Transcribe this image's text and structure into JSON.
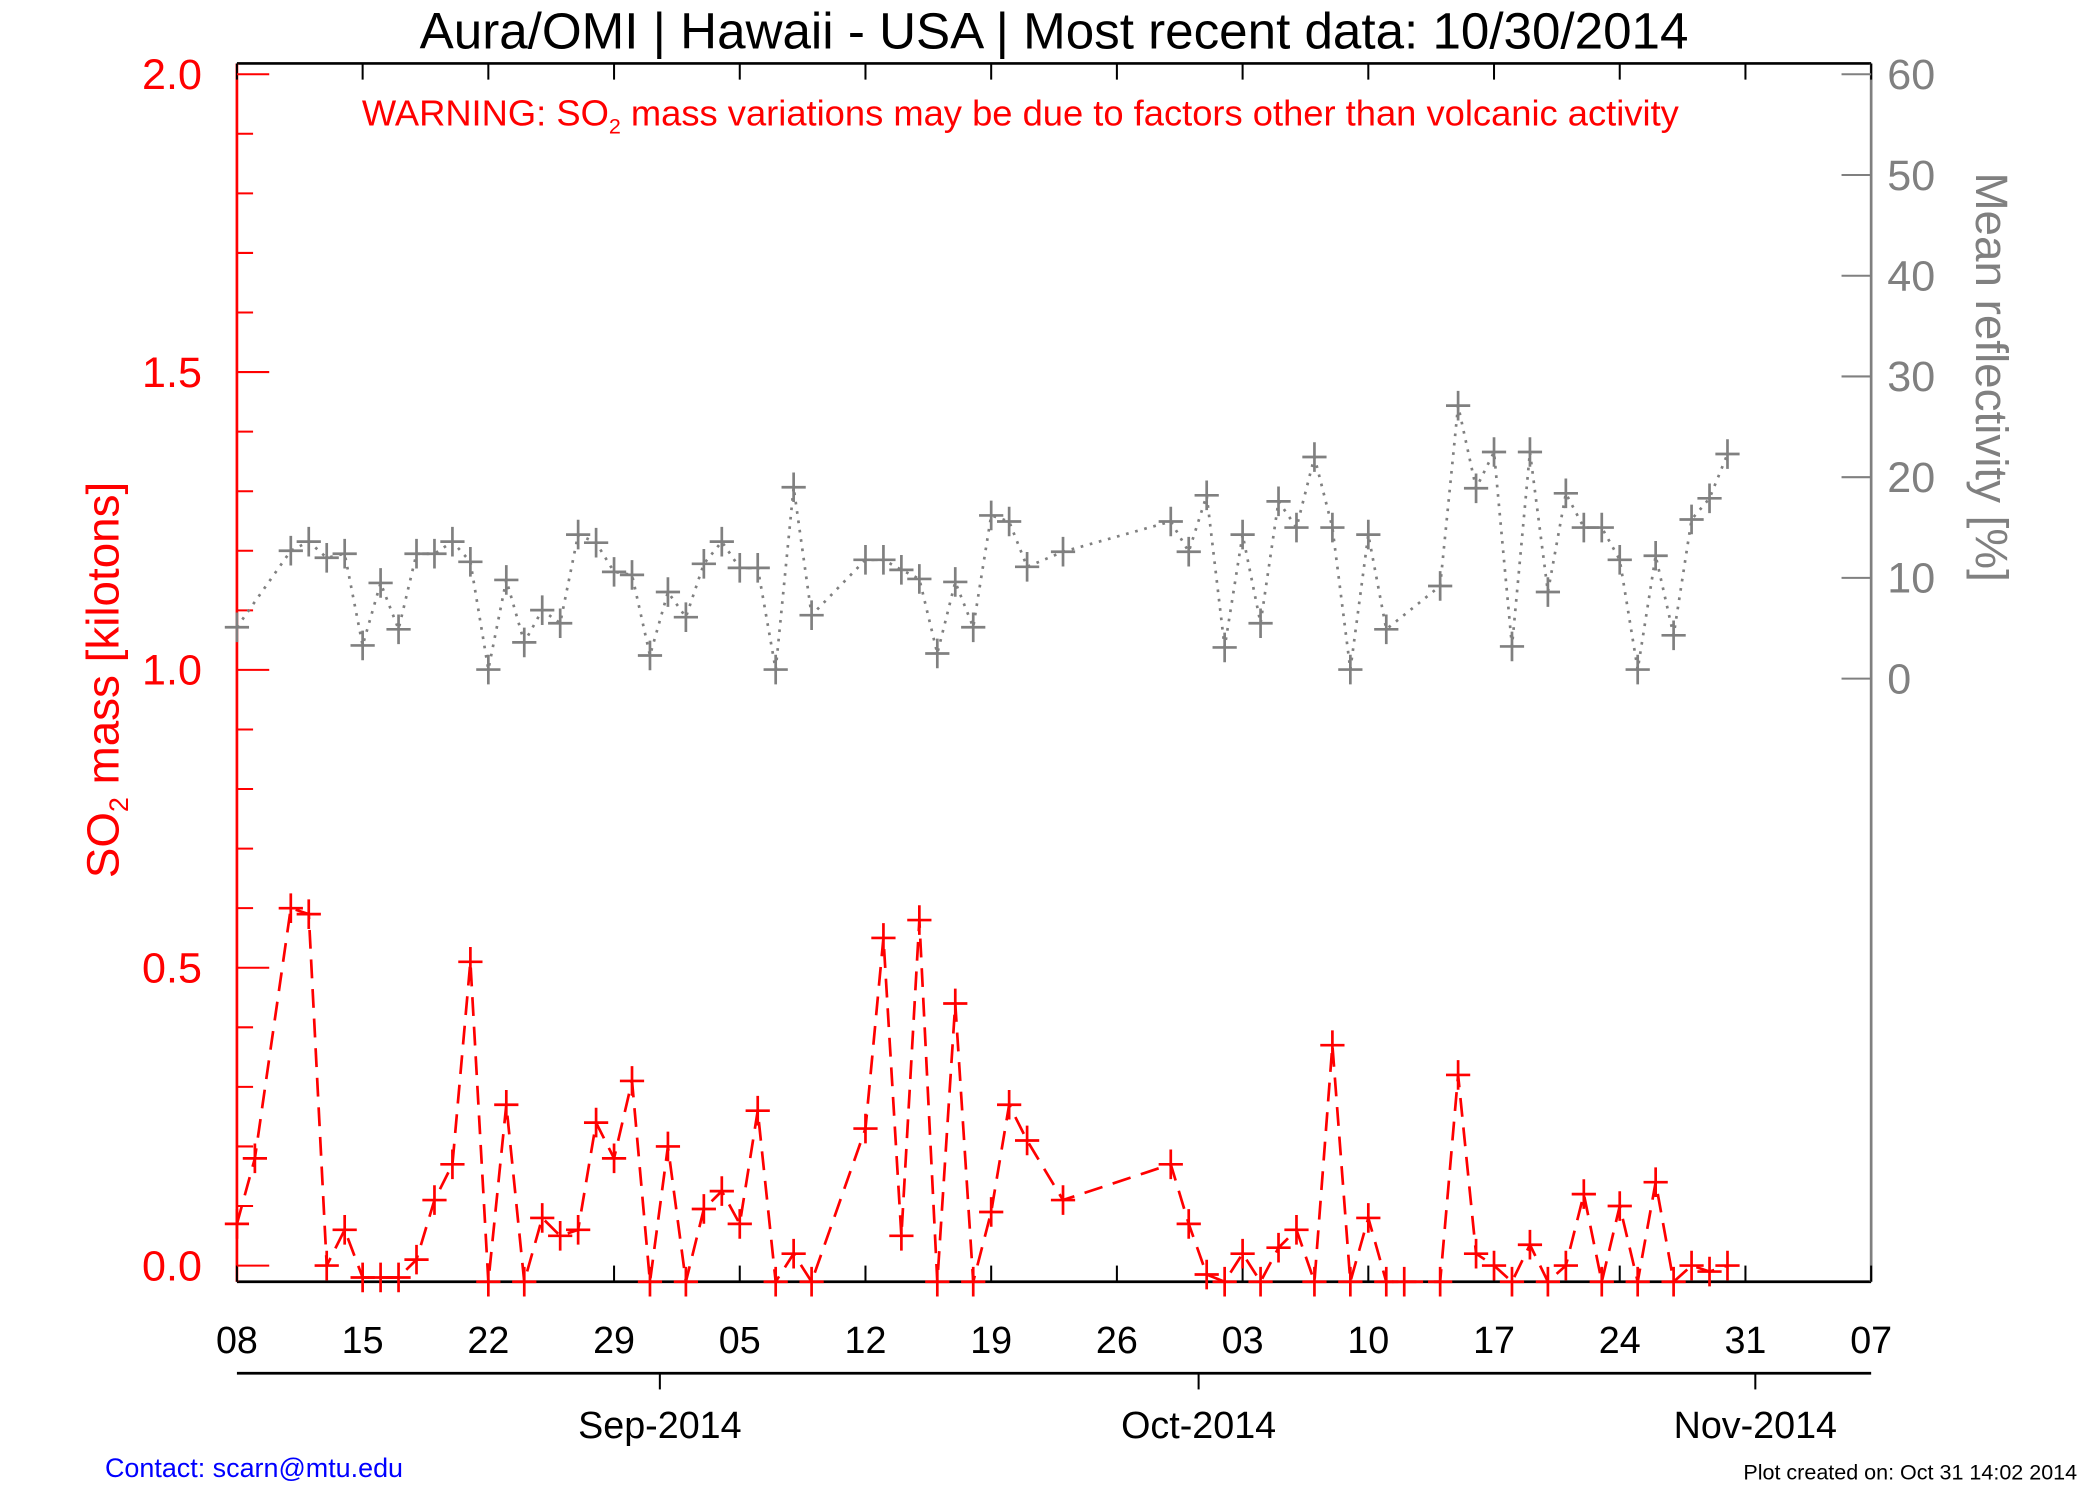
{
  "chart_data": {
    "type": "line",
    "title": "Aura/OMI | Hawaii - USA | Most recent data: 10/30/2014",
    "warning": {
      "prefix": "WARNING: SO",
      "sub": "2",
      "suffix": " mass variations may be due to factors other than volcanic activity"
    },
    "ylabel_left": {
      "prefix": "SO",
      "sub": "2",
      "suffix": " mass [kilotons]"
    },
    "ylabel_right": "Mean reflectivity [%]",
    "x_unit": "days since 2014-08-08",
    "xlim": [
      0,
      91
    ],
    "ylim_left": [
      0,
      2.0
    ],
    "ylim_right": [
      0,
      60
    ],
    "x_ticks": [
      {
        "day": 0,
        "label": "08"
      },
      {
        "day": 7,
        "label": "15"
      },
      {
        "day": 14,
        "label": "22"
      },
      {
        "day": 21,
        "label": "29"
      },
      {
        "day": 28,
        "label": "05"
      },
      {
        "day": 35,
        "label": "12"
      },
      {
        "day": 42,
        "label": "19"
      },
      {
        "day": 49,
        "label": "26"
      },
      {
        "day": 56,
        "label": "03"
      },
      {
        "day": 63,
        "label": "10"
      },
      {
        "day": 70,
        "label": "17"
      },
      {
        "day": 77,
        "label": "24"
      },
      {
        "day": 84,
        "label": "31"
      },
      {
        "day": 91,
        "label": "07"
      }
    ],
    "month_ticks": [
      {
        "day": 24,
        "label": "Sep-2014"
      },
      {
        "day": 54,
        "label": "Oct-2014"
      },
      {
        "day": 85,
        "label": "Nov-2014"
      }
    ],
    "y_ticks_left": [
      "0.0",
      "0.5",
      "1.0",
      "1.5",
      "2.0"
    ],
    "y_ticks_right": [
      "0",
      "10",
      "20",
      "30",
      "40",
      "50",
      "60"
    ],
    "series": [
      {
        "name": "SO2 mass [kilotons]",
        "color": "#ff0000",
        "style": "dashed",
        "x": [
          0,
          1,
          3,
          4,
          5,
          6,
          7,
          8,
          9,
          10,
          11,
          12,
          13,
          14,
          15,
          16,
          17,
          18,
          19,
          20,
          21,
          22,
          23,
          24,
          25,
          26,
          27,
          28,
          29,
          30,
          31,
          32,
          35,
          36,
          37,
          38,
          39,
          40,
          41,
          42,
          43,
          44,
          46,
          52,
          53,
          54,
          55,
          56,
          57,
          58,
          59,
          60,
          61,
          62,
          63,
          64,
          65,
          67,
          68,
          69,
          70,
          71,
          72,
          73,
          74,
          75,
          76,
          77,
          78,
          79,
          80,
          81,
          82,
          83
        ],
        "y": [
          0.07,
          0.18,
          0.6,
          0.59,
          0.0,
          0.06,
          -0.02,
          -0.02,
          -0.02,
          0.01,
          0.11,
          0.17,
          0.51,
          -0.03,
          0.27,
          -0.03,
          0.08,
          0.05,
          0.06,
          0.24,
          0.18,
          0.31,
          -0.03,
          0.2,
          -0.03,
          0.095,
          0.125,
          0.07,
          0.26,
          -0.03,
          0.02,
          -0.03,
          0.23,
          0.55,
          0.05,
          0.58,
          -0.03,
          0.44,
          -0.03,
          0.09,
          0.27,
          0.21,
          0.11,
          0.17,
          0.07,
          -0.015,
          -0.03,
          0.02,
          -0.03,
          0.03,
          0.06,
          -0.03,
          0.37,
          -0.03,
          0.08,
          -0.03,
          -0.03,
          -0.03,
          0.32,
          0.02,
          0.0,
          -0.03,
          0.035,
          -0.03,
          0.0,
          0.12,
          -0.03,
          0.1,
          -0.03,
          0.14,
          -0.03,
          0.0,
          -0.01,
          0.0
        ]
      },
      {
        "name": "Mean reflectivity [%]",
        "color": "#808080",
        "style": "dotted",
        "x": [
          0,
          3,
          4,
          5,
          6,
          7,
          8,
          9,
          10,
          11,
          12,
          13,
          14,
          15,
          16,
          17,
          18,
          19,
          20,
          21,
          22,
          23,
          24,
          25,
          26,
          27,
          28,
          29,
          30,
          31,
          32,
          35,
          36,
          37,
          38,
          39,
          40,
          41,
          42,
          43,
          44,
          46,
          52,
          53,
          54,
          55,
          56,
          57,
          58,
          59,
          60,
          61,
          62,
          63,
          64,
          67,
          68,
          69,
          70,
          71,
          72,
          73,
          74,
          75,
          76,
          77,
          78,
          79,
          80,
          81,
          82,
          83
        ],
        "y": [
          5.1,
          12.7,
          13.6,
          12,
          12.4,
          3.3,
          9.5,
          4.9,
          12.4,
          12.4,
          13.6,
          11.6,
          0.9,
          9.8,
          3.6,
          6.8,
          5.5,
          14.3,
          13.5,
          10.6,
          10.3,
          2.3,
          8.6,
          6.1,
          11.4,
          13.6,
          11,
          11,
          0.9,
          19,
          6.3,
          11.8,
          11.8,
          10.8,
          9.9,
          2.5,
          9.6,
          5.1,
          16.2,
          15.6,
          11.1,
          12.6,
          15.6,
          12.6,
          18.2,
          3.1,
          14.3,
          5.5,
          17.6,
          15,
          22,
          15,
          0.9,
          14.3,
          4.9,
          9.2,
          27.1,
          18.9,
          22.5,
          3.2,
          22.5,
          8.6,
          18.4,
          15,
          15,
          11.8,
          0.9,
          12.2,
          4.3,
          15.8,
          17.9,
          22.3
        ]
      }
    ]
  },
  "footer": {
    "contact": "Contact: scarn@mtu.edu",
    "created": "Plot created on: Oct 31 14:02 2014"
  }
}
